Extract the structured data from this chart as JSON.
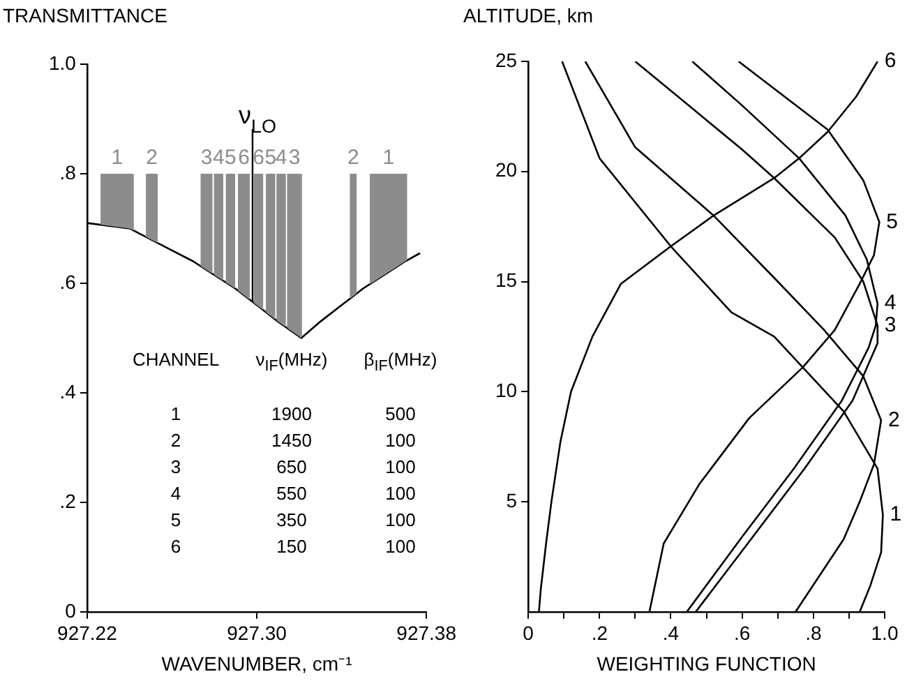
{
  "chart_data": [
    {
      "type": "line",
      "ylabel": "TRANSMITTANCE",
      "xlabel": "WAVENUMBER, cm⁻¹",
      "marker": "none",
      "x": [
        927.22,
        927.24,
        927.25,
        927.26,
        927.27,
        927.28,
        927.29,
        927.3,
        927.31,
        927.321,
        927.33,
        927.34,
        927.35,
        927.36,
        927.37,
        927.377
      ],
      "series": [
        {
          "color": "#000000",
          "values": [
            0.71,
            0.7,
            0.68,
            0.66,
            0.64,
            0.615,
            0.59,
            0.56,
            0.53,
            0.5,
            0.53,
            0.56,
            0.59,
            0.615,
            0.64,
            0.655
          ]
        }
      ],
      "xlim": [
        927.22,
        927.38
      ],
      "ylim": [
        0,
        1
      ],
      "xticks": [
        927.22,
        {
          "value": 927.3,
          "label": "927.30"
        },
        927.38
      ],
      "yticks": [
        0,
        {
          "value": 0.2,
          "label": ".2"
        },
        {
          "value": 0.4,
          "label": ".4"
        },
        {
          "value": 0.6,
          "label": ".6"
        },
        {
          "value": 0.8,
          "label": ".8"
        },
        {
          "value": 1,
          "label": "1.0"
        }
      ],
      "bands": [
        {
          "axis": "x",
          "from": 927.2263,
          "to": 927.242,
          "label": "1",
          "color": "#8c8c8c"
        },
        {
          "axis": "x",
          "from": 927.2477,
          "to": 927.2533,
          "label": "2",
          "color": "#8c8c8c"
        },
        {
          "axis": "x",
          "from": 927.2735,
          "to": 927.2791,
          "label": "3",
          "color": "#8c8c8c"
        },
        {
          "axis": "x",
          "from": 927.2798,
          "to": 927.2842,
          "label": "4",
          "color": "#8c8c8c"
        },
        {
          "axis": "x",
          "from": 927.2854,
          "to": 927.2898,
          "label": "5",
          "color": "#8c8c8c"
        },
        {
          "axis": "x",
          "from": 927.2911,
          "to": 927.2967,
          "label": "6",
          "color": "#8c8c8c"
        },
        {
          "axis": "x",
          "from": 927.2986,
          "to": 927.303,
          "label": "6",
          "color": "#8c8c8c"
        },
        {
          "axis": "x",
          "from": 927.3043,
          "to": 927.3087,
          "label": "5",
          "color": "#8c8c8c"
        },
        {
          "axis": "x",
          "from": 927.3093,
          "to": 927.3137,
          "label": "4",
          "color": "#8c8c8c"
        },
        {
          "axis": "x",
          "from": 927.3143,
          "to": 927.3213,
          "label": "3",
          "color": "#8c8c8c"
        },
        {
          "axis": "x",
          "from": 927.3439,
          "to": 927.3471,
          "label": "2",
          "color": "#8c8c8c"
        },
        {
          "axis": "x",
          "from": 927.3533,
          "to": 927.3709,
          "label": "1",
          "color": "#8c8c8c"
        }
      ],
      "ref_lines": [
        {
          "axis": "x",
          "value": 927.298,
          "label": "ν$_{LO}$"
        }
      ],
      "annotations": [
        "CHANNEL",
        "ν$_{IF}$(MHz)",
        "β$_{IF}$(MHz)",
        "1",
        "1900",
        "500",
        "2",
        "1450",
        "100",
        "3",
        "650",
        "100",
        "4",
        "550",
        "100",
        "5",
        "350",
        "100",
        "6",
        "150",
        "100"
      ]
    },
    {
      "type": "line",
      "ylabel": "ALTITUDE, km",
      "xlabel": "WEIGHTING FUNCTION",
      "marker": "none",
      "series": [
        {
          "name": "1",
          "color": "#000000",
          "x": [
            0.095,
            0.2,
            0.4,
            0.57,
            0.69,
            0.885,
            0.98,
            0.995,
            0.99,
            0.96,
            0.93
          ],
          "values": [
            25,
            20.6,
            16.6,
            13.6,
            12.5,
            9.1,
            6.5,
            4.4,
            2.7,
            1.2,
            0
          ]
        },
        {
          "name": "2",
          "color": "#000000",
          "x": [
            0.16,
            0.3,
            0.52,
            0.7,
            0.83,
            0.94,
            0.99,
            0.97,
            0.93,
            0.885,
            0.75
          ],
          "values": [
            25,
            21.1,
            18,
            15,
            12.8,
            10.7,
            8.7,
            6.7,
            5,
            3.3,
            0
          ]
        },
        {
          "name": "3",
          "color": "#000000",
          "x": [
            0.3,
            0.45,
            0.6,
            0.69,
            0.86,
            0.94,
            0.98,
            0.98,
            0.91,
            0.775,
            0.625,
            0.47
          ],
          "values": [
            25,
            23,
            21,
            19.7,
            17,
            15,
            13,
            12.2,
            9.6,
            6.5,
            3.3,
            0
          ]
        },
        {
          "name": "4",
          "color": "#000000",
          "x": [
            0.46,
            0.6,
            0.76,
            0.89,
            0.95,
            0.98,
            0.975,
            0.955,
            0.88,
            0.745,
            0.595,
            0.445
          ],
          "values": [
            25,
            23,
            20.6,
            18,
            16,
            14,
            13,
            12,
            9.6,
            6.5,
            3.3,
            0
          ]
        },
        {
          "name": "5",
          "color": "#000000",
          "x": [
            0.59,
            0.84,
            0.94,
            0.985,
            0.97,
            0.93,
            0.86,
            0.77,
            0.62,
            0.48,
            0.38,
            0.34
          ],
          "values": [
            25,
            21.9,
            19.6,
            17.7,
            16.2,
            14.9,
            12.8,
            11.1,
            8.8,
            5.8,
            3.1,
            0
          ]
        },
        {
          "name": "6",
          "color": "#000000",
          "x": [
            0.03,
            0.035,
            0.05,
            0.065,
            0.09,
            0.12,
            0.18,
            0.26,
            0.4,
            0.52,
            0.69,
            0.76,
            0.84,
            0.92,
            0.98
          ],
          "values": [
            0,
            1,
            3.1,
            5,
            7.7,
            10,
            12.5,
            14.9,
            16.6,
            18,
            19.7,
            20.6,
            21.8,
            23.4,
            25
          ]
        }
      ],
      "xlim": [
        0,
        1
      ],
      "ylim": [
        0,
        25
      ],
      "xticks": [
        0,
        {
          "value": 0.1,
          "label": null
        },
        {
          "value": 0.2,
          "label": ".2"
        },
        {
          "value": 0.3,
          "label": null
        },
        {
          "value": 0.4,
          "label": ".4"
        },
        {
          "value": 0.5,
          "label": null
        },
        {
          "value": 0.6,
          "label": ".6"
        },
        {
          "value": 0.7,
          "label": null
        },
        {
          "value": 0.8,
          "label": ".8"
        },
        {
          "value": 0.9,
          "label": null
        },
        {
          "value": 1,
          "label": "1.0"
        }
      ],
      "yticks": [
        5,
        10,
        15,
        20,
        25
      ]
    }
  ]
}
